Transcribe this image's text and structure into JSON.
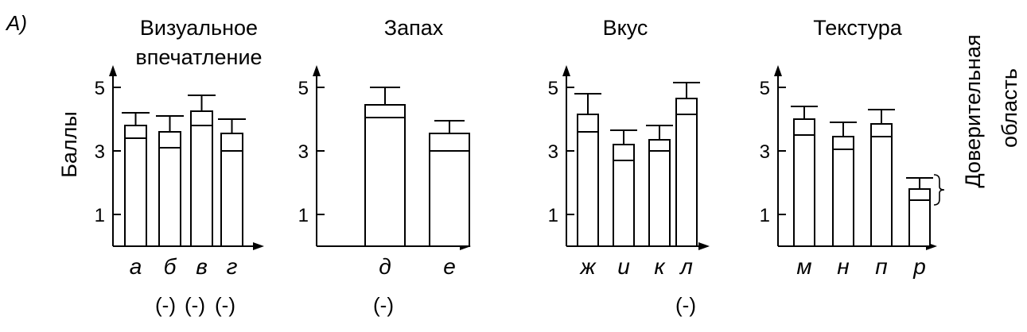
{
  "panel_label": "A)",
  "y_axis_label": "Баллы",
  "side_label": [
    "Доверительная",
    "область"
  ],
  "chart_data": [
    {
      "type": "bar",
      "title": "Визуальное впечатление",
      "title_lines": [
        "Визуальное",
        "впечатление"
      ],
      "categories": [
        "а",
        "б",
        "в",
        "г"
      ],
      "values": [
        3.8,
        3.6,
        4.25,
        3.55
      ],
      "ci_low": [
        3.4,
        3.1,
        3.8,
        3.0
      ],
      "ci_high": [
        4.2,
        4.1,
        4.75,
        4.0
      ],
      "yticks": [
        1,
        3,
        5
      ],
      "ylim": [
        0,
        5.5
      ],
      "annotations": [
        "(-)",
        "(-)",
        "(-)"
      ],
      "annotated_indices": [
        1,
        2,
        3
      ]
    },
    {
      "type": "bar",
      "title": "Запах",
      "title_lines": [
        "Запах"
      ],
      "categories": [
        "д",
        "е"
      ],
      "values": [
        4.45,
        3.55
      ],
      "ci_low": [
        4.05,
        3.0
      ],
      "ci_high": [
        5.0,
        3.95
      ],
      "yticks": [
        1,
        3,
        5
      ],
      "ylim": [
        0,
        5.5
      ],
      "annotations": [
        "(-)"
      ],
      "annotated_indices": [
        0
      ]
    },
    {
      "type": "bar",
      "title": "Вкус",
      "title_lines": [
        "Вкус"
      ],
      "categories": [
        "ж",
        "и",
        "к",
        "л"
      ],
      "values": [
        4.15,
        3.2,
        3.35,
        4.65
      ],
      "ci_low": [
        3.6,
        2.7,
        3.0,
        4.15
      ],
      "ci_high": [
        4.8,
        3.65,
        3.8,
        5.15
      ],
      "yticks": [
        1,
        3,
        5
      ],
      "ylim": [
        0,
        5.5
      ],
      "annotations": [
        "(-)"
      ],
      "annotated_indices": [
        3
      ]
    },
    {
      "type": "bar",
      "title": "Текстура",
      "title_lines": [
        "Текстура"
      ],
      "categories": [
        "м",
        "н",
        "п",
        "р"
      ],
      "values": [
        4.0,
        3.45,
        3.85,
        1.8
      ],
      "ci_low": [
        3.5,
        3.05,
        3.45,
        1.45
      ],
      "ci_high": [
        4.4,
        3.9,
        4.3,
        2.15
      ],
      "yticks": [
        1,
        3,
        5
      ],
      "ylim": [
        0,
        5.5
      ],
      "annotations": [],
      "annotated_indices": []
    }
  ]
}
